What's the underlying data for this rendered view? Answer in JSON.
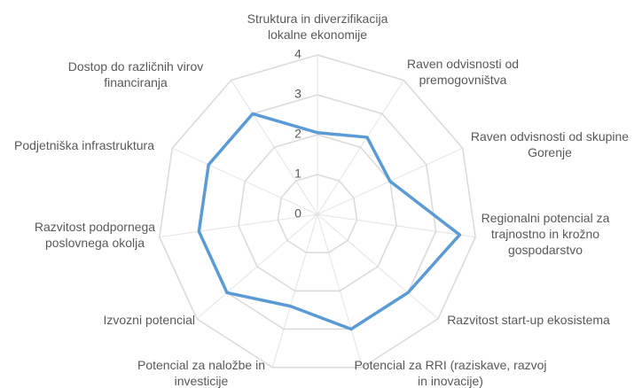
{
  "chart_data": {
    "type": "radar",
    "categories": [
      "Struktura in diverzifikacija lokalne ekonomije",
      "Raven odvisnosti od premogovništva",
      "Raven odvisnosti od skupine Gorenje",
      "Regionalni potencial za trajnostno in krožno gospodarstvo",
      "Razvitost start-up ekosistema",
      "Potencial za RRI (raziskave, razvoj in inovacije)",
      "Potencial za naložbe in investicije",
      "Izvozni potencial",
      "Razvitost podpornega poslovnega okolja",
      "Podjetniška infrastruktura",
      "Dostop do različnih virov financiranja"
    ],
    "values": [
      2.05,
      2.3,
      2.0,
      3.6,
      3.0,
      3.0,
      2.4,
      3.0,
      3.0,
      3.0,
      3.0
    ],
    "color": "#5b9bd5",
    "ylim": [
      0,
      4
    ],
    "yticks": [
      0,
      1,
      2,
      3,
      4
    ],
    "grid": true
  }
}
